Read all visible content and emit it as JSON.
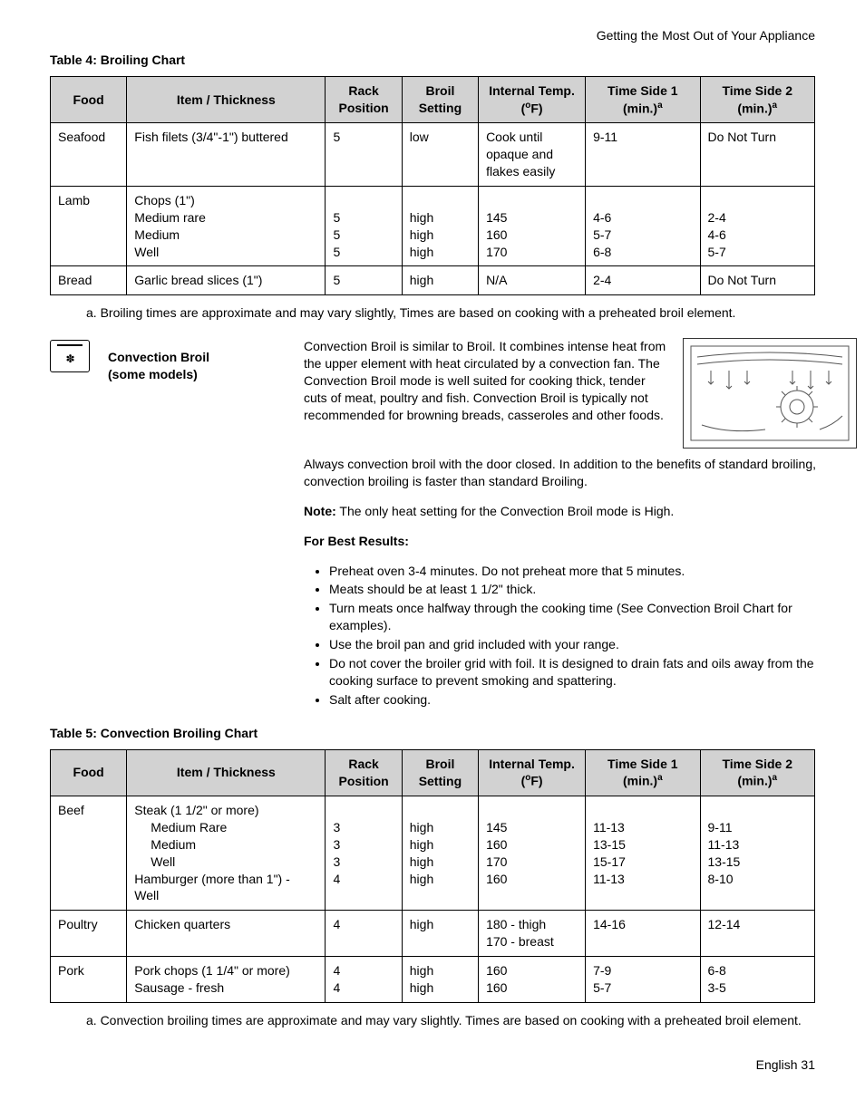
{
  "header": {
    "right": "Getting the Most Out of Your Appliance"
  },
  "table4": {
    "title": "Table 4: Broiling Chart",
    "columns": [
      "Food",
      "Item / Thickness",
      "Rack Position",
      "Broil Setting",
      "Internal Temp. (",
      "Time Side 1 (min.)",
      "Time Side 2 (min.)"
    ],
    "temp_unit_sup": "o",
    "temp_unit_tail": "F)",
    "min_sup": "a",
    "rows": [
      {
        "food": "Seafood",
        "item": "Fish filets (3/4\"-1\") buttered",
        "rack": "5",
        "broil": "low",
        "temp": "Cook until opaque and flakes easily",
        "t1": "9-11",
        "t2": "Do Not Turn"
      },
      {
        "food": "Lamb",
        "item_lines": [
          "Chops (1\")",
          "Medium rare",
          "Medium",
          "Well"
        ],
        "rack_lines": [
          "",
          "5",
          "5",
          "5"
        ],
        "broil_lines": [
          "",
          "high",
          "high",
          "high"
        ],
        "temp_lines": [
          "",
          "145",
          "160",
          "170"
        ],
        "t1_lines": [
          "",
          "4-6",
          "5-7",
          "6-8"
        ],
        "t2_lines": [
          "",
          "2-4",
          "4-6",
          "5-7"
        ]
      },
      {
        "food": "Bread",
        "item": "Garlic bread slices (1\")",
        "rack": "5",
        "broil": "high",
        "temp": "N/A",
        "t1": "2-4",
        "t2": "Do Not Turn"
      }
    ],
    "footnote": "a. Broiling times are approximate and may vary slightly, Times are based on cooking with a preheated broil element."
  },
  "section": {
    "label_line1": "Convection Broil",
    "label_line2": "(some models)",
    "para1": "Convection Broil is similar to Broil. It combines intense heat from the upper element with heat circulated by a convection fan. The Convection Broil mode is well suited for cooking thick, tender cuts of meat, poultry and fish. Convection Broil is typically not recommended for browning breads, casseroles and other foods.",
    "para2": "Always convection broil with the door closed. In addition to the benefits of standard broiling, convection broiling is faster than standard Broiling.",
    "note_label": "Note:",
    "note_text": " The only heat setting for the Convection Broil mode is High.",
    "best_header": "For Best Results:",
    "tips": [
      "Preheat oven 3-4 minutes. Do not preheat more that 5 minutes.",
      "Meats should be at least 1 1/2\" thick.",
      "Turn meats once halfway through the cooking time (See Convection Broil Chart for examples).",
      "Use the broil pan and grid included with your range.",
      "Do not cover the broiler grid with foil. It is designed to drain fats and oils away from the cooking surface to prevent smoking and spattering.",
      "Salt after cooking."
    ]
  },
  "table5": {
    "title": "Table 5: Convection Broiling Chart",
    "rows": [
      {
        "food": "Beef",
        "item_lines": [
          "Steak (1 1/2\" or more)",
          "Medium Rare",
          "Medium",
          "Well",
          "Hamburger (more than 1\") - Well"
        ],
        "rack_lines": [
          "",
          "3",
          "3",
          "3",
          "4"
        ],
        "broil_lines": [
          "",
          "high",
          "high",
          "high",
          "high"
        ],
        "temp_lines": [
          "",
          "145",
          "160",
          "170",
          "160"
        ],
        "t1_lines": [
          "",
          "11-13",
          "13-15",
          "15-17",
          "11-13"
        ],
        "t2_lines": [
          "",
          "9-11",
          "11-13",
          "13-15",
          "8-10"
        ],
        "item_indent": [
          false,
          true,
          true,
          true,
          false
        ]
      },
      {
        "food": "Poultry",
        "item": "Chicken quarters",
        "rack": "4",
        "broil": "high",
        "temp_lines": [
          "180 - thigh",
          "170 - breast"
        ],
        "t1": "14-16",
        "t2": "12-14"
      },
      {
        "food": "Pork",
        "item_lines": [
          "Pork chops (1 1/4\" or more)",
          "Sausage - fresh"
        ],
        "rack_lines": [
          "4",
          "4"
        ],
        "broil_lines": [
          "high",
          "high"
        ],
        "temp_lines": [
          "160",
          "160"
        ],
        "t1_lines": [
          "7-9",
          "5-7"
        ],
        "t2_lines": [
          "6-8",
          "3-5"
        ]
      }
    ],
    "footnote": "a. Convection broiling times are approximate and may vary slightly. Times are based on cooking with a preheated broil element."
  },
  "footer": {
    "page": "English 31"
  }
}
